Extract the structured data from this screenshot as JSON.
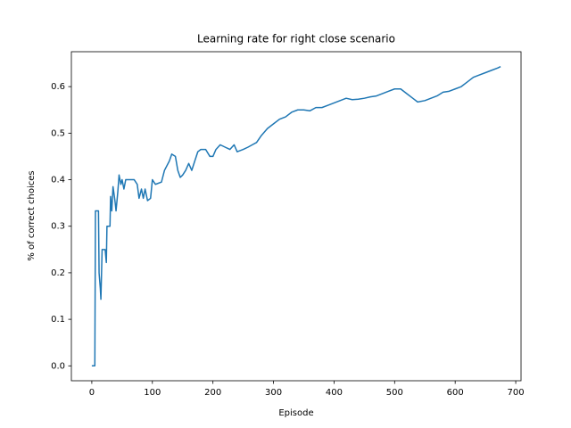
{
  "chart_data": {
    "type": "line",
    "title": "Learning rate for right close scenario",
    "x_label": "Episode",
    "y_label": "% of correct choices",
    "xlim": [
      -33.75,
      708.75
    ],
    "ylim": [
      -0.032,
      0.675
    ],
    "xticks": [
      0,
      100,
      200,
      300,
      400,
      500,
      600,
      700
    ],
    "yticks": [
      {
        "value": 0,
        "label": "0.0"
      },
      0.1,
      0.2,
      0.3,
      0.4,
      0.5,
      0.6
    ],
    "grid": false,
    "series": [
      {
        "color": "#1f77b4",
        "x": [
          0,
          5,
          6,
          11,
          12,
          14,
          15,
          17,
          22,
          24,
          25,
          30,
          31,
          33,
          35,
          38,
          40,
          43,
          45,
          48,
          50,
          53,
          56,
          60,
          70,
          75,
          78,
          82,
          85,
          88,
          92,
          97,
          100,
          105,
          115,
          120,
          128,
          132,
          138,
          142,
          146,
          150,
          155,
          160,
          165,
          170,
          175,
          180,
          188,
          195,
          200,
          205,
          212,
          220,
          228,
          235,
          240,
          250,
          258,
          265,
          272,
          280,
          290,
          300,
          310,
          320,
          330,
          340,
          350,
          360,
          370,
          380,
          390,
          400,
          410,
          420,
          430,
          440,
          450,
          460,
          470,
          480,
          490,
          500,
          510,
          520,
          530,
          538,
          550,
          560,
          570,
          580,
          590,
          600,
          610,
          620,
          630,
          640,
          650,
          660,
          670,
          675
        ],
        "values": [
          0,
          0,
          0.333,
          0.333,
          0.2,
          0.167,
          0.143,
          0.25,
          0.25,
          0.222,
          0.3,
          0.3,
          0.364,
          0.333,
          0.385,
          0.357,
          0.333,
          0.375,
          0.41,
          0.39,
          0.4,
          0.38,
          0.4,
          0.4,
          0.4,
          0.39,
          0.36,
          0.38,
          0.36,
          0.38,
          0.355,
          0.36,
          0.4,
          0.39,
          0.395,
          0.42,
          0.44,
          0.455,
          0.45,
          0.42,
          0.405,
          0.41,
          0.42,
          0.435,
          0.42,
          0.44,
          0.46,
          0.465,
          0.465,
          0.45,
          0.45,
          0.465,
          0.475,
          0.47,
          0.465,
          0.475,
          0.46,
          0.465,
          0.47,
          0.475,
          0.48,
          0.495,
          0.51,
          0.52,
          0.53,
          0.535,
          0.545,
          0.55,
          0.55,
          0.548,
          0.555,
          0.555,
          0.56,
          0.565,
          0.57,
          0.575,
          0.572,
          0.573,
          0.575,
          0.578,
          0.58,
          0.585,
          0.59,
          0.595,
          0.595,
          0.585,
          0.575,
          0.567,
          0.57,
          0.575,
          0.58,
          0.588,
          0.59,
          0.595,
          0.6,
          0.61,
          0.62,
          0.625,
          0.63,
          0.635,
          0.64,
          0.643
        ]
      }
    ]
  }
}
